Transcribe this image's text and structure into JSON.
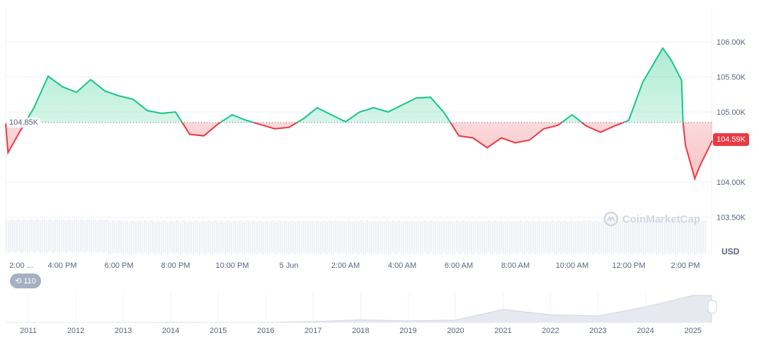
{
  "chart_data": {
    "type": "area",
    "yaxis": {
      "ticks": [
        "103.50K",
        "104.00K",
        "105.00K",
        "105.50K",
        "106.00K"
      ],
      "tick_values": [
        103.5,
        104.0,
        105.0,
        105.5,
        106.0
      ],
      "unit": "USD",
      "range": [
        103.25,
        106.3
      ]
    },
    "xaxis": {
      "ticks": [
        "2:00 ...",
        "4:00 PM",
        "6:00 PM",
        "8:00 PM",
        "10:00 PM",
        "5 Jun",
        "2:00 AM",
        "4:00 AM",
        "6:00 AM",
        "8:00 AM",
        "10:00 AM",
        "12:00 PM",
        "2:00 PM"
      ]
    },
    "baseline": {
      "value": 104.85,
      "label": "104.85K"
    },
    "current_price": {
      "value": 104.59,
      "label": "104.59K"
    },
    "colors": {
      "up": "#16c784",
      "down": "#ea3943"
    },
    "series": [
      [
        "Jun 4 14:00",
        104.83
      ],
      [
        "Jun 4 14:05",
        104.42
      ],
      [
        "Jun 4 14:30",
        104.72
      ],
      [
        "Jun 4 15:00",
        105.06
      ],
      [
        "Jun 4 15:30",
        105.51
      ],
      [
        "Jun 4 16:00",
        105.36
      ],
      [
        "Jun 4 16:30",
        105.28
      ],
      [
        "Jun 4 17:00",
        105.46
      ],
      [
        "Jun 4 17:30",
        105.3
      ],
      [
        "Jun 4 18:00",
        105.23
      ],
      [
        "Jun 4 18:30",
        105.18
      ],
      [
        "Jun 4 19:00",
        105.02
      ],
      [
        "Jun 4 19:30",
        104.98
      ],
      [
        "Jun 4 20:00",
        105.0
      ],
      [
        "Jun 4 20:30",
        104.68
      ],
      [
        "Jun 4 21:00",
        104.66
      ],
      [
        "Jun 4 21:30",
        104.83
      ],
      [
        "Jun 4 22:00",
        104.96
      ],
      [
        "Jun 4 22:30",
        104.88
      ],
      [
        "Jun 4 23:00",
        104.82
      ],
      [
        "Jun 4 23:30",
        104.76
      ],
      [
        "Jun 5 00:00",
        104.78
      ],
      [
        "Jun 5 00:30",
        104.9
      ],
      [
        "Jun 5 01:00",
        105.06
      ],
      [
        "Jun 5 01:30",
        104.96
      ],
      [
        "Jun 5 02:00",
        104.86
      ],
      [
        "Jun 5 02:30",
        105.0
      ],
      [
        "Jun 5 03:00",
        105.06
      ],
      [
        "Jun 5 03:30",
        105.0
      ],
      [
        "Jun 5 04:00",
        105.1
      ],
      [
        "Jun 5 04:30",
        105.2
      ],
      [
        "Jun 5 05:00",
        105.21
      ],
      [
        "Jun 5 05:30",
        104.98
      ],
      [
        "Jun 5 06:00",
        104.66
      ],
      [
        "Jun 5 06:30",
        104.63
      ],
      [
        "Jun 5 07:00",
        104.49
      ],
      [
        "Jun 5 07:30",
        104.63
      ],
      [
        "Jun 5 08:00",
        104.56
      ],
      [
        "Jun 5 08:30",
        104.6
      ],
      [
        "Jun 5 09:00",
        104.76
      ],
      [
        "Jun 5 09:30",
        104.81
      ],
      [
        "Jun 5 10:00",
        104.96
      ],
      [
        "Jun 5 10:30",
        104.8
      ],
      [
        "Jun 5 11:00",
        104.71
      ],
      [
        "Jun 5 11:30",
        104.8
      ],
      [
        "Jun 5 12:00",
        104.88
      ],
      [
        "Jun 5 12:30",
        105.43
      ],
      [
        "Jun 5 13:00",
        105.77
      ],
      [
        "Jun 5 13:12",
        105.91
      ],
      [
        "Jun 5 13:30",
        105.74
      ],
      [
        "Jun 5 13:52",
        105.45
      ],
      [
        "Jun 5 13:55",
        104.86
      ],
      [
        "Jun 5 14:00",
        104.53
      ],
      [
        "Jun 5 14:20",
        104.05
      ],
      [
        "Jun 5 14:30",
        104.22
      ],
      [
        "Jun 5 14:57",
        104.59
      ]
    ],
    "navigator": {
      "years": [
        "2011",
        "2012",
        "2013",
        "2014",
        "2015",
        "2016",
        "2017",
        "2018",
        "2019",
        "2020",
        "2021",
        "2022",
        "2023",
        "2024",
        "2025"
      ],
      "values_k": [
        0,
        0,
        0.5,
        0.6,
        0.3,
        0.5,
        3,
        10,
        6,
        9,
        50,
        30,
        25,
        60,
        105
      ]
    }
  },
  "ui": {
    "history_label": "110",
    "history_icon": "history-icon",
    "watermark": "CoinMarketCap",
    "unit_label": "USD"
  }
}
